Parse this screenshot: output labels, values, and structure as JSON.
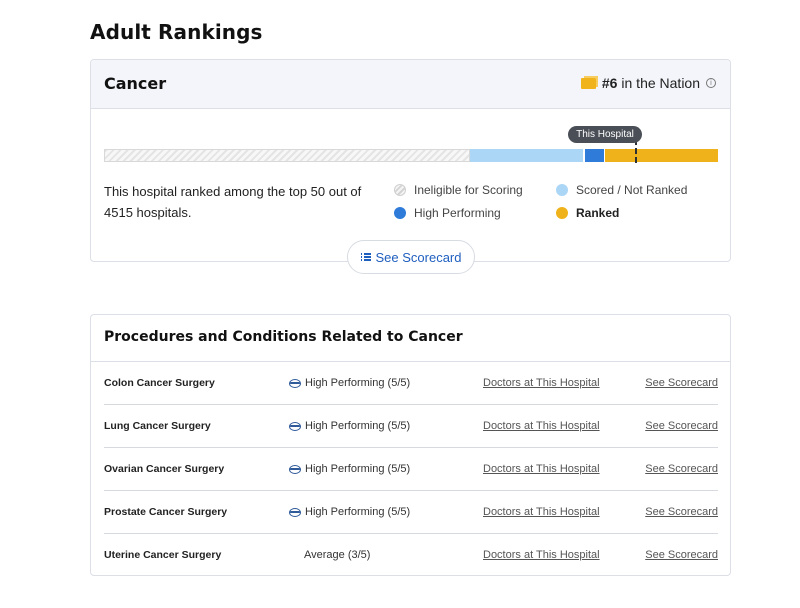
{
  "page": {
    "title": "Adult Rankings"
  },
  "ranking": {
    "specialty": "Cancer",
    "nation_rank": "#6",
    "nation_suffix": "in the Nation",
    "info_glyph": "i",
    "marker_label": "This Hospital",
    "description": "This hospital ranked among the top 50 out of 4515 hospitals.",
    "legend": {
      "ineligible": "Ineligible for Scoring",
      "scored": "Scored / Not Ranked",
      "high": "High Performing",
      "ranked": "Ranked"
    },
    "scorecard_button": "See Scorecard",
    "colors": {
      "ranked": "#f0b21b",
      "scored": "#acd6f6",
      "high": "#2e7bd9",
      "link": "#1f5fbf"
    },
    "icons": {
      "badge": "rank-badge-icon",
      "info": "info-icon",
      "list": "list-icon"
    }
  },
  "procedures": {
    "title": "Procedures and Conditions Related to Cancer",
    "rows": [
      {
        "name": "Colon Cancer Surgery",
        "rating": "High Performing (5/5)",
        "doctors": "Doctors at This Hospital",
        "scorecard": "See Scorecard"
      },
      {
        "name": "Lung Cancer Surgery",
        "rating": "High Performing (5/5)",
        "doctors": "Doctors at This Hospital",
        "scorecard": "See Scorecard"
      },
      {
        "name": "Ovarian Cancer Surgery",
        "rating": "High Performing (5/5)",
        "doctors": "Doctors at This Hospital",
        "scorecard": "See Scorecard"
      },
      {
        "name": "Prostate Cancer Surgery",
        "rating": "High Performing (5/5)",
        "doctors": "Doctors at This Hospital",
        "scorecard": "See Scorecard"
      },
      {
        "name": "Uterine Cancer Surgery",
        "rating": "Average (3/5)",
        "doctors": "Doctors at This Hospital",
        "scorecard": "See Scorecard"
      }
    ]
  }
}
